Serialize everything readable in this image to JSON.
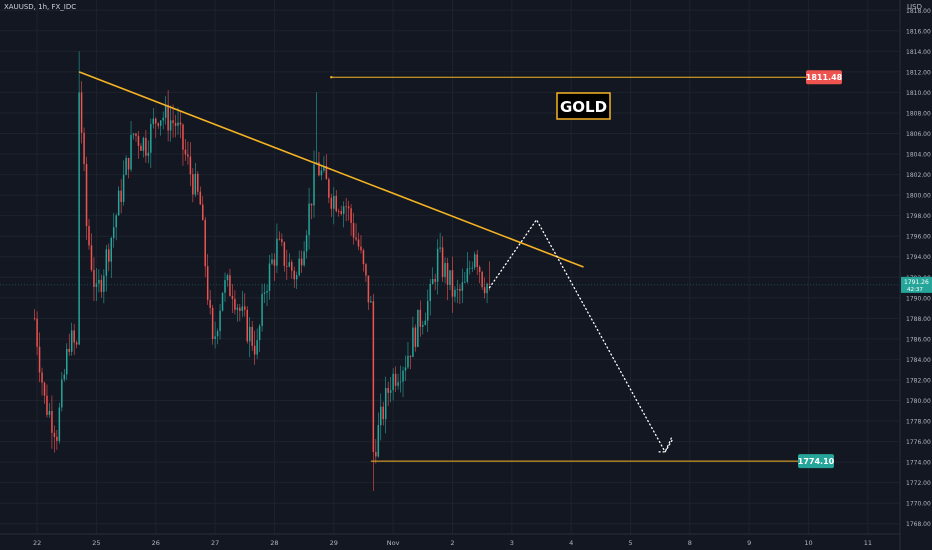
{
  "header": {
    "symbol": "XAUUSD, 1h, FX_IDC",
    "currency": "USD"
  },
  "colors": {
    "bg": "#131722",
    "up": "#26a69a",
    "down": "#ef5350",
    "trend": "#f5b323",
    "grid": "#1e222d",
    "axis_text": "#b2b5be"
  },
  "chart_data": {
    "type": "candlestick",
    "symbol": "XAUUSD",
    "interval": "1h",
    "ylim": [
      1767,
      1819
    ],
    "y_ticks": [
      1768,
      1770,
      1772,
      1774,
      1776,
      1778,
      1780,
      1782,
      1784,
      1786,
      1788,
      1790,
      1792,
      1794,
      1796,
      1798,
      1800,
      1802,
      1804,
      1806,
      1808,
      1810,
      1812,
      1814,
      1816,
      1818
    ],
    "x_ticks": [
      {
        "label": "22",
        "t": 1
      },
      {
        "label": "25",
        "t": 25
      },
      {
        "label": "26",
        "t": 49
      },
      {
        "label": "27",
        "t": 73
      },
      {
        "label": "28",
        "t": 97
      },
      {
        "label": "29",
        "t": 121
      },
      {
        "label": "Nov",
        "t": 145
      },
      {
        "label": "2",
        "t": 169
      },
      {
        "label": "3",
        "t": 193
      },
      {
        "label": "4",
        "t": 217
      },
      {
        "label": "5",
        "t": 241
      },
      {
        "label": "8",
        "t": 265
      },
      {
        "label": "9",
        "t": 289
      },
      {
        "label": "10",
        "t": 313
      },
      {
        "label": "11",
        "t": 337
      }
    ],
    "xlim": [
      -14,
      350
    ],
    "last_price": {
      "value": 1791.26,
      "countdown": "42:37"
    },
    "levels": [
      {
        "name": "resistance",
        "value": 1811.48,
        "label": "1811.48",
        "t_start": 120
      },
      {
        "name": "support",
        "value": 1774.1,
        "label": "1774.10",
        "t_start": 136
      }
    ],
    "trendline": [
      {
        "t": 18,
        "price": 1812
      },
      {
        "t": 222,
        "price": 1793
      }
    ],
    "projection": [
      {
        "t": 184,
        "price": 1791
      },
      {
        "t": 203,
        "price": 1797.6
      },
      {
        "t": 255,
        "price": 1775
      },
      {
        "t": 258,
        "price": 1776.2
      }
    ],
    "annotation": "GOLD",
    "anchors": [
      {
        "t": 0,
        "price": 1788
      },
      {
        "t": 4,
        "price": 1780
      },
      {
        "t": 9,
        "price": 1777
      },
      {
        "t": 14,
        "price": 1786
      },
      {
        "t": 17,
        "price": 1785
      },
      {
        "t": 18,
        "price": 1811
      },
      {
        "t": 21,
        "price": 1797
      },
      {
        "t": 25,
        "price": 1790
      },
      {
        "t": 32,
        "price": 1797
      },
      {
        "t": 40,
        "price": 1806
      },
      {
        "t": 45,
        "price": 1805
      },
      {
        "t": 50,
        "price": 1808
      },
      {
        "t": 57,
        "price": 1807
      },
      {
        "t": 62,
        "price": 1803
      },
      {
        "t": 67,
        "price": 1799
      },
      {
        "t": 72,
        "price": 1785
      },
      {
        "t": 76,
        "price": 1791
      },
      {
        "t": 80,
        "price": 1791
      },
      {
        "t": 84,
        "price": 1788
      },
      {
        "t": 90,
        "price": 1785
      },
      {
        "t": 93,
        "price": 1791
      },
      {
        "t": 98,
        "price": 1795
      },
      {
        "t": 106,
        "price": 1792
      },
      {
        "t": 112,
        "price": 1800
      },
      {
        "t": 114,
        "price": 1803
      },
      {
        "t": 120,
        "price": 1800
      },
      {
        "t": 126,
        "price": 1799
      },
      {
        "t": 131,
        "price": 1795
      },
      {
        "t": 136,
        "price": 1789
      },
      {
        "t": 137,
        "price": 1775
      },
      {
        "t": 140,
        "price": 1778
      },
      {
        "t": 144,
        "price": 1782
      },
      {
        "t": 150,
        "price": 1784
      },
      {
        "t": 156,
        "price": 1788
      },
      {
        "t": 160,
        "price": 1790
      },
      {
        "t": 163,
        "price": 1794
      },
      {
        "t": 167,
        "price": 1792
      },
      {
        "t": 170,
        "price": 1790
      },
      {
        "t": 174,
        "price": 1791
      },
      {
        "t": 178,
        "price": 1795
      },
      {
        "t": 181,
        "price": 1792
      },
      {
        "t": 184,
        "price": 1791
      }
    ]
  }
}
